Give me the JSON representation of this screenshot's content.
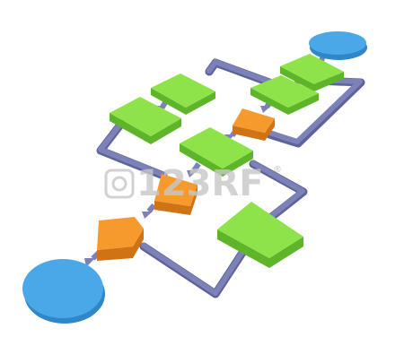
{
  "diagram": {
    "kind": "flowchart",
    "view": "3d-perspective",
    "watermark": {
      "text": "123RF",
      "mark": "®"
    },
    "shapes": {
      "start": {
        "shape": "ellipse",
        "color": "blue"
      },
      "end": {
        "shape": "ellipse",
        "color": "blue"
      },
      "process_count": 6,
      "decision_count": 3
    },
    "colors": {
      "background": "#ffffff",
      "terminal": "#4aa8e8",
      "terminal_side": "#2f86c8",
      "process": "#8fe34a",
      "process_side": "#5fb52a",
      "decision": "#f79a2e",
      "decision_side": "#cf7314",
      "connector": "#7c82b8",
      "connector_edge": "#5d6298",
      "watermark": "#c8c8c8"
    }
  }
}
